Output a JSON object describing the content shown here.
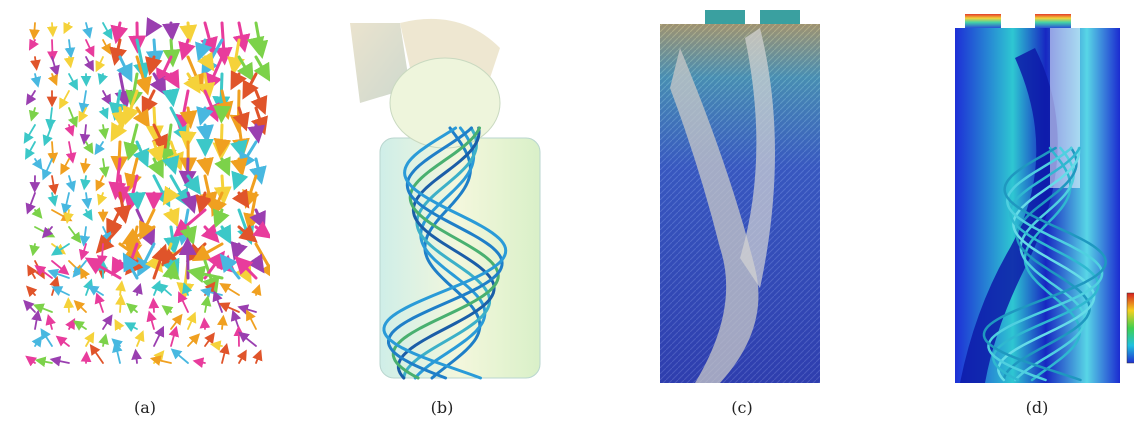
{
  "figure": {
    "panels": [
      {
        "id": "a",
        "caption": "(a)",
        "depicts": "vector-arrow-field"
      },
      {
        "id": "b",
        "caption": "(b)",
        "depicts": "helical-streamlines-with-inlet"
      },
      {
        "id": "c",
        "caption": "(c)",
        "depicts": "surface-texture-flow"
      },
      {
        "id": "d",
        "caption": "(d)",
        "depicts": "colored-surface-with-streamlines"
      }
    ]
  }
}
